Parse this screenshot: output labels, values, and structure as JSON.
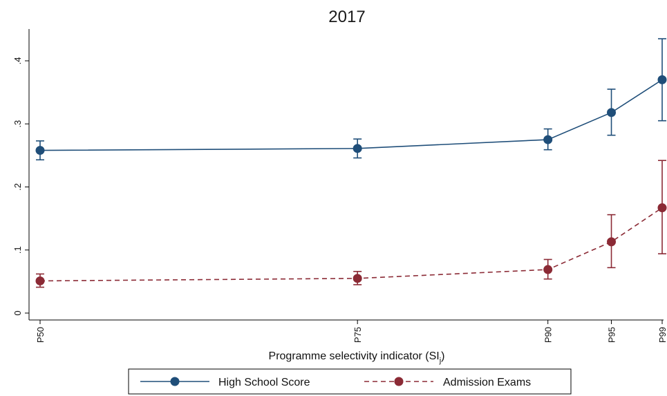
{
  "chart_data": {
    "type": "line",
    "title": "2017",
    "xlabel_main": "Programme selectivity indicator (SI",
    "xlabel_sub": "j",
    "xlabel_close": ")",
    "x_categories": [
      "P50",
      "P75",
      "P90",
      "P95",
      "P99"
    ],
    "x_positions": [
      50,
      75,
      90,
      95,
      99
    ],
    "y_ticks": [
      0,
      0.1,
      0.2,
      0.3,
      0.4
    ],
    "y_tick_labels": [
      "0",
      ".1",
      ".2",
      ".3",
      ".4"
    ],
    "ylim": [
      -0.01,
      0.45
    ],
    "grid": false,
    "legend_position": "bottom",
    "series": [
      {
        "name": "High School Score",
        "color": "#1f4e79",
        "line_style": "solid",
        "values": [
          0.258,
          0.261,
          0.275,
          0.318,
          0.37
        ],
        "ci_low": [
          0.243,
          0.246,
          0.259,
          0.282,
          0.305
        ],
        "ci_high": [
          0.273,
          0.276,
          0.292,
          0.355,
          0.435
        ]
      },
      {
        "name": "Admission Exams",
        "color": "#8b2a35",
        "line_style": "dashed",
        "values": [
          0.051,
          0.055,
          0.069,
          0.113,
          0.167
        ],
        "ci_low": [
          0.041,
          0.045,
          0.054,
          0.072,
          0.094
        ],
        "ci_high": [
          0.062,
          0.066,
          0.085,
          0.156,
          0.242
        ]
      }
    ]
  }
}
